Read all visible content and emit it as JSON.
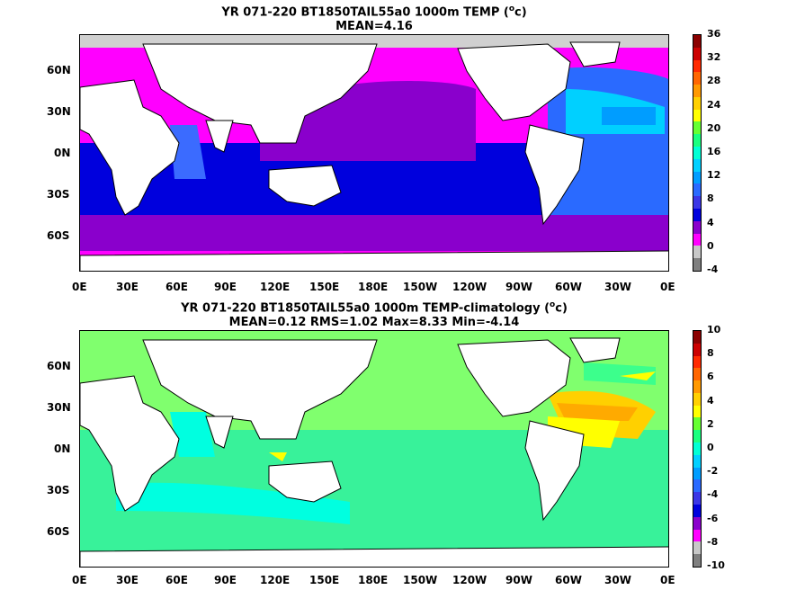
{
  "panels": [
    {
      "title_line1": "YR 071-220 BT1850TAIL55a0 1000m TEMP (",
      "title_sup": "o",
      "title_tail": "c)",
      "title_line2": "MEAN=4.16",
      "colorbar_labels": [
        "36",
        "32",
        "28",
        "24",
        "20",
        "16",
        "12",
        "8",
        "4",
        "0",
        "-4"
      ],
      "colorbar_colors": [
        "#8b0000",
        "#cc0000",
        "#ff2a00",
        "#ff6600",
        "#ff9900",
        "#ffd000",
        "#ffff00",
        "#66ff33",
        "#1aff80",
        "#00ffd5",
        "#00d0ff",
        "#009dff",
        "#2a6aff",
        "#3b36e6",
        "#0000dd",
        "#8a00cc",
        "#ff00ff",
        "#c8c8c8",
        "#808080"
      ],
      "lat_labels": [
        "60N",
        "30N",
        "0N",
        "30S",
        "60S"
      ],
      "lon_labels": [
        "0E",
        "30E",
        "60E",
        "90E",
        "120E",
        "150E",
        "180E",
        "150W",
        "120W",
        "90W",
        "60W",
        "30W",
        "0E"
      ]
    },
    {
      "title_line1": "YR 071-220 BT1850TAIL55a0 1000m TEMP-climatology (",
      "title_sup": "o",
      "title_tail": "c)",
      "title_line2": "MEAN=0.12   RMS=1.02   Max=8.33   Min=-4.14",
      "colorbar_labels": [
        "10",
        "8",
        "6",
        "4",
        "2",
        "0",
        "-2",
        "-4",
        "-6",
        "-8",
        "-10"
      ],
      "colorbar_colors": [
        "#8b0000",
        "#cc0000",
        "#ff2a00",
        "#ff6600",
        "#ff9900",
        "#ffd000",
        "#ffff00",
        "#66ff33",
        "#1aff80",
        "#00ffd5",
        "#00d0ff",
        "#009dff",
        "#2a6aff",
        "#3b36e6",
        "#0000dd",
        "#8a00cc",
        "#ff00ff",
        "#c8c8c8",
        "#808080"
      ],
      "lat_labels": [
        "60N",
        "30N",
        "0N",
        "30S",
        "60S"
      ],
      "lon_labels": [
        "0E",
        "30E",
        "60E",
        "90E",
        "120E",
        "150E",
        "180E",
        "150W",
        "120W",
        "90W",
        "60W",
        "30W",
        "0E"
      ]
    }
  ]
}
